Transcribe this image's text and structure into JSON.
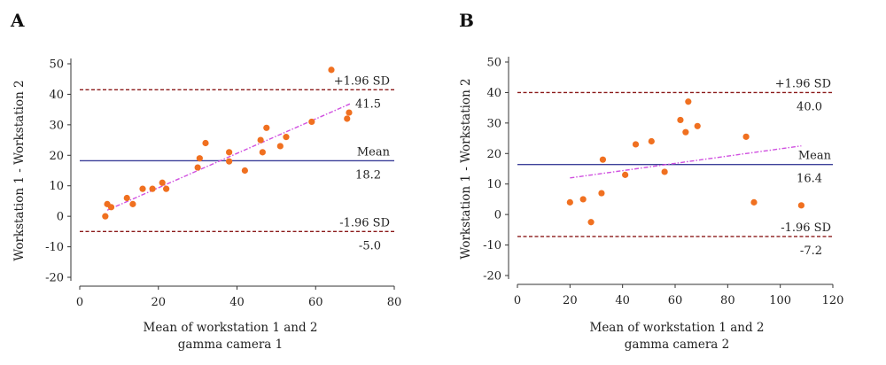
{
  "chart_data": [
    {
      "type": "scatter",
      "panel": "A",
      "xlabel": "Mean of workstation 1 and 2",
      "xlabel2": "gamma camera 1",
      "ylabel": "Workstation 1 - Workstation 2",
      "xlim": [
        0,
        80
      ],
      "ylim": [
        -20,
        50
      ],
      "x_ticks": [
        "0",
        "20",
        "40",
        "60",
        "80"
      ],
      "y_ticks": [
        "-20",
        "-10",
        "0",
        "10",
        "20",
        "30",
        "40",
        "50"
      ],
      "x": [
        6.5,
        7,
        8,
        12,
        13.5,
        16,
        18.5,
        21,
        22,
        30,
        30.5,
        32,
        38,
        38,
        42,
        46,
        46.5,
        47.5,
        51,
        52.5,
        59,
        64,
        68,
        68.5
      ],
      "y": [
        0,
        4,
        3,
        6,
        4,
        9,
        9,
        11,
        9,
        16,
        19,
        24,
        21,
        18,
        15,
        25,
        21,
        29,
        23,
        26,
        31,
        48,
        32,
        34
      ],
      "reference_lines": [
        {
          "name": "+1.96 SD",
          "value": 41.5,
          "value_label": "41.5",
          "style": "dashed",
          "color": "#8b1a1a"
        },
        {
          "name": "Mean",
          "value": 18.2,
          "value_label": "18.2",
          "style": "solid",
          "color": "#3b3f99"
        },
        {
          "name": "-1.96 SD",
          "value": -5.0,
          "value_label": "-5.0",
          "style": "dashed",
          "color": "#8b1a1a"
        }
      ],
      "regression_line": {
        "x": [
          7,
          69
        ],
        "y": [
          2,
          37
        ],
        "style": "dash-dot",
        "color": "#d050e0"
      },
      "point_color": "#f07020",
      "grid": false
    },
    {
      "type": "scatter",
      "panel": "B",
      "xlabel": "Mean of workstation 1 and 2",
      "xlabel2": "gamma camera 2",
      "ylabel": "Workstation 1 - Workstation 2",
      "xlim": [
        0,
        120
      ],
      "ylim": [
        -20,
        50
      ],
      "x_ticks": [
        "0",
        "20",
        "40",
        "60",
        "80",
        "100",
        "120"
      ],
      "y_ticks": [
        "-20",
        "-10",
        "0",
        "10",
        "20",
        "30",
        "40",
        "50"
      ],
      "x": [
        20,
        25,
        28,
        32,
        32.5,
        41,
        45,
        51,
        56,
        62,
        64,
        65,
        68.5,
        87,
        90,
        108
      ],
      "y": [
        4,
        5,
        -2.5,
        7,
        18,
        13,
        23,
        24,
        14,
        31,
        27,
        37,
        29,
        25.5,
        4,
        3
      ],
      "reference_lines": [
        {
          "name": "+1.96 SD",
          "value": 40.0,
          "value_label": "40.0",
          "style": "dashed",
          "color": "#8b1a1a"
        },
        {
          "name": "Mean",
          "value": 16.4,
          "value_label": "16.4",
          "style": "solid",
          "color": "#3b3f99"
        },
        {
          "name": "-1.96 SD",
          "value": -7.2,
          "value_label": "-7.2",
          "style": "dashed",
          "color": "#8b1a1a"
        }
      ],
      "regression_line": {
        "x": [
          20,
          108
        ],
        "y": [
          12,
          22.5
        ],
        "style": "dash-dot",
        "color": "#d050e0"
      },
      "point_color": "#f07020",
      "grid": false
    }
  ]
}
